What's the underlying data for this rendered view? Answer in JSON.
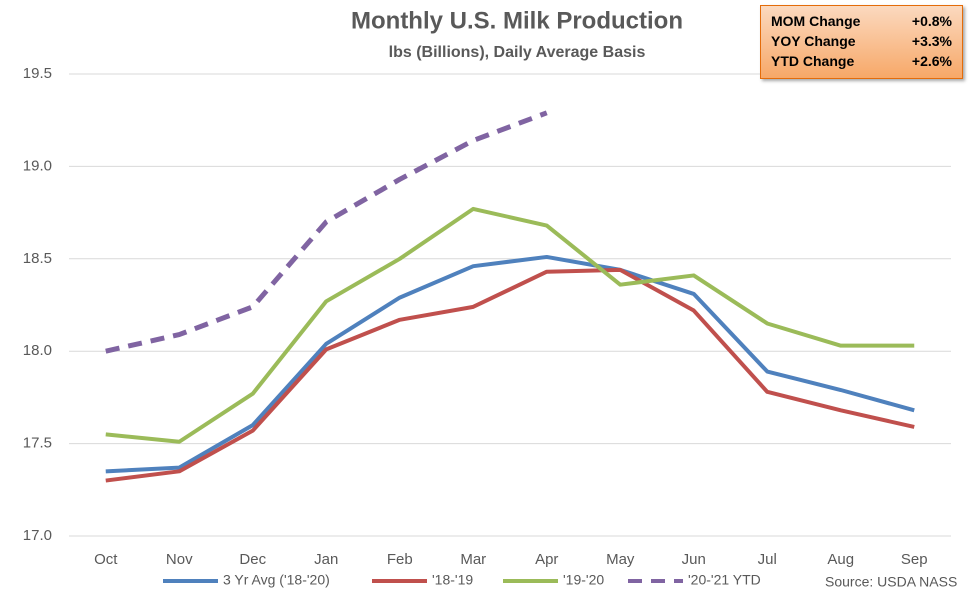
{
  "chart_data": {
    "type": "line",
    "title": "Monthly U.S. Milk Production",
    "subtitle": "lbs (Billions), Daily Average Basis",
    "categories": [
      "Oct",
      "Nov",
      "Dec",
      "Jan",
      "Feb",
      "Mar",
      "Apr",
      "May",
      "Jun",
      "Jul",
      "Aug",
      "Sep"
    ],
    "series": [
      {
        "name": "3 Yr Avg ('18-'20)",
        "color": "#4f81bd",
        "values": [
          17.35,
          17.37,
          17.6,
          18.04,
          18.29,
          18.46,
          18.51,
          18.44,
          18.31,
          17.89,
          17.79,
          17.68
        ]
      },
      {
        "name": "'18-'19",
        "color": "#c0504d",
        "values": [
          17.3,
          17.35,
          17.57,
          18.01,
          18.17,
          18.24,
          18.43,
          18.44,
          18.22,
          17.78,
          17.68,
          17.59
        ]
      },
      {
        "name": "'19-'20",
        "color": "#9bbb59",
        "values": [
          17.55,
          17.51,
          17.77,
          18.27,
          18.5,
          18.77,
          18.68,
          18.36,
          18.41,
          18.15,
          18.03,
          18.03
        ]
      },
      {
        "name": "'20-'21 YTD",
        "color": "#8064a2",
        "dashed": true,
        "values": [
          18.0,
          18.09,
          18.24,
          18.7,
          18.93,
          19.14,
          19.29,
          null,
          null,
          null,
          null,
          null
        ]
      }
    ],
    "ylim": [
      17.0,
      19.5
    ],
    "yticks": [
      {
        "value": 17,
        "label": "17.0"
      },
      17.5,
      {
        "value": 18,
        "label": "18.0"
      },
      18.5,
      {
        "value": 19,
        "label": "19.0"
      },
      19.5
    ],
    "grid": true,
    "legend": "bottom",
    "source": "Source: USDA NASS",
    "summary_table": {
      "rows": [
        [
          "MOM Change",
          "+0.8%"
        ],
        [
          "YOY Change",
          "+3.3%"
        ],
        [
          "YTD Change",
          "+2.6%"
        ]
      ]
    }
  }
}
